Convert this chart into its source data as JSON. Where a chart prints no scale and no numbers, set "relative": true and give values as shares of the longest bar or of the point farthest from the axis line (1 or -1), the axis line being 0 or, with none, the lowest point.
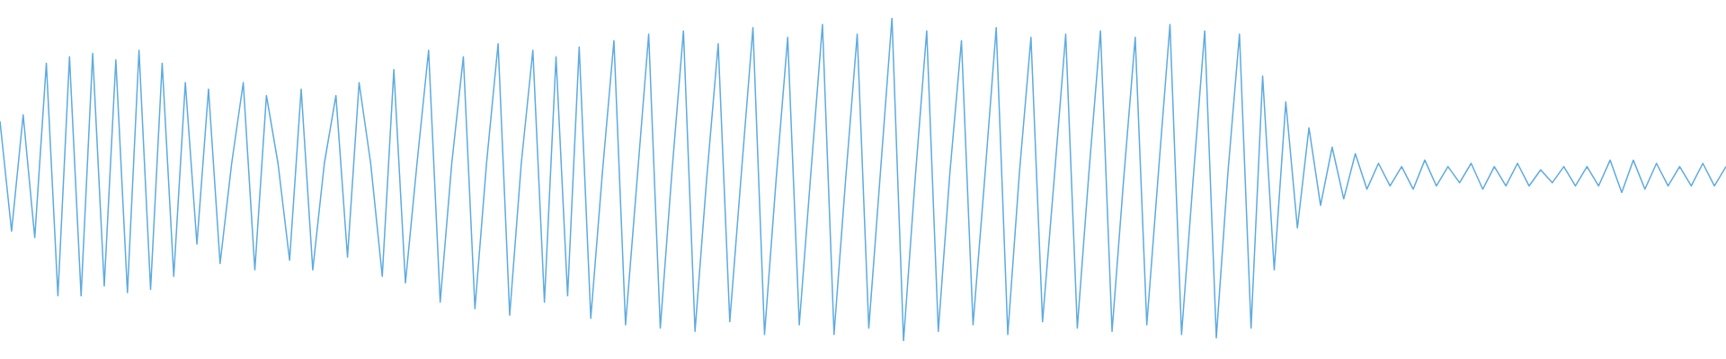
{
  "chart_data": {
    "type": "line",
    "relative": true,
    "grid": false,
    "legend": false,
    "marker": "none",
    "line_style": "solid",
    "categories": [
      null,
      null,
      null,
      null,
      null,
      null,
      null,
      null,
      null,
      null,
      null,
      null,
      null,
      null,
      null,
      null,
      null,
      null,
      null,
      null,
      null,
      null,
      null,
      null,
      null,
      null,
      null,
      null,
      null,
      null,
      null,
      null,
      null,
      null,
      null,
      null,
      null,
      null,
      null,
      null,
      null,
      null,
      null,
      null,
      null,
      null,
      null,
      null,
      null,
      null,
      null,
      null,
      null,
      null,
      null,
      null,
      null,
      null,
      null,
      null,
      null,
      null,
      null,
      null,
      null,
      null,
      null,
      null,
      null,
      null,
      null,
      null,
      null,
      null,
      null,
      null,
      null,
      null,
      null,
      null,
      null,
      null,
      null,
      null,
      null,
      null,
      null,
      null,
      null,
      null,
      null,
      null,
      null,
      null,
      null,
      null,
      null,
      null,
      null,
      null,
      null,
      null,
      null,
      null,
      null,
      null,
      null,
      null,
      null,
      null,
      null,
      null,
      null,
      null,
      null,
      null,
      null,
      null,
      null,
      null,
      null,
      null,
      null,
      null,
      null,
      null,
      null,
      null,
      null,
      null,
      null,
      null,
      null,
      null,
      null,
      null,
      null,
      null,
      null,
      null,
      null,
      null,
      null,
      null,
      null,
      null,
      null,
      null,
      null,
      null
    ],
    "series": [
      {
        "color": "#5dabe1",
        "values": [
          0.68,
          0.34,
          0.7,
          0.32,
          0.86,
          0.14,
          0.88,
          0.14,
          0.89,
          0.17,
          0.87,
          0.15,
          0.9,
          0.16,
          0.86,
          0.2,
          0.8,
          0.3,
          0.78,
          0.24,
          0.55,
          0.8,
          0.22,
          0.76,
          0.55,
          0.25,
          0.78,
          0.22,
          0.55,
          0.76,
          0.26,
          0.8,
          0.55,
          0.2,
          0.84,
          0.18,
          0.55,
          0.9,
          0.12,
          0.55,
          0.88,
          0.1,
          0.55,
          0.92,
          0.08,
          0.55,
          0.9,
          0.12,
          0.88,
          0.14,
          0.91,
          0.07,
          0.52,
          0.93,
          0.05,
          0.5,
          0.95,
          0.04,
          0.52,
          0.96,
          0.03,
          0.5,
          0.92,
          0.06,
          0.52,
          0.97,
          0.02,
          0.5,
          0.94,
          0.05,
          0.52,
          0.98,
          0.02,
          0.5,
          0.95,
          0.04,
          0.52,
          1.0,
          0.0,
          0.5,
          0.96,
          0.03,
          0.52,
          0.93,
          0.05,
          0.5,
          0.97,
          0.02,
          0.52,
          0.94,
          0.06,
          0.5,
          0.95,
          0.04,
          0.52,
          0.96,
          0.03,
          0.5,
          0.94,
          0.05,
          0.52,
          0.98,
          0.02,
          0.5,
          0.96,
          0.01,
          0.52,
          0.95,
          0.04,
          0.82,
          0.22,
          0.74,
          0.35,
          0.66,
          0.42,
          0.6,
          0.44,
          0.58,
          0.47,
          0.55,
          0.48,
          0.54,
          0.47,
          0.56,
          0.48,
          0.54,
          0.49,
          0.55,
          0.47,
          0.54,
          0.48,
          0.55,
          0.48,
          0.53,
          0.49,
          0.54,
          0.48,
          0.54,
          0.48,
          0.56,
          0.46,
          0.56,
          0.47,
          0.55,
          0.48,
          0.54,
          0.48,
          0.55,
          0.48,
          0.54
        ]
      }
    ]
  }
}
